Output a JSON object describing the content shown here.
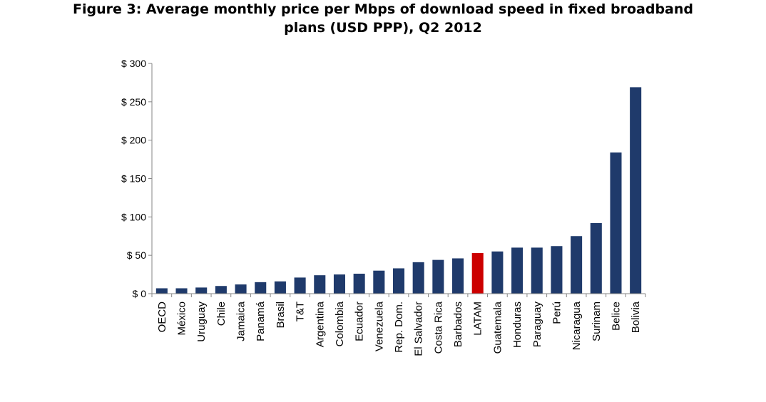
{
  "chart_data": {
    "type": "bar",
    "title_line1": "Figure 3: Average monthly price per Mbps of download speed in fixed broadband",
    "title_line2": "plans (USD PPP), Q2 2012",
    "xlabel": "",
    "ylabel": "",
    "ylim": [
      0,
      300
    ],
    "yticks": [
      0,
      50,
      100,
      150,
      200,
      250,
      300
    ],
    "ytick_labels": [
      "$ 0",
      "$ 50",
      "$ 100",
      "$ 150",
      "$ 200",
      "$ 250",
      "$ 300"
    ],
    "categories": [
      "OECD",
      "México",
      "Uruguay",
      "Chile",
      "Jamaica",
      "Panamá",
      "Brasil",
      "T&T",
      "Argentina",
      "Colombia",
      "Ecuador",
      "Venezuela",
      "Rep. Dom.",
      "El Salvador",
      "Costa Rica",
      "Barbados",
      "LATAM",
      "Guatemala",
      "Honduras",
      "Paraguay",
      "Perú",
      "Nicaragua",
      "Surinam",
      "Belice",
      "Bolivia"
    ],
    "values": [
      7,
      7,
      8,
      10,
      12,
      15,
      16,
      21,
      24,
      25,
      26,
      30,
      33,
      41,
      44,
      46,
      53,
      55,
      60,
      60,
      62,
      75,
      92,
      184,
      269
    ],
    "highlight_category": "LATAM",
    "colors": {
      "bar": "#1f3a6b",
      "highlight": "#cc0000",
      "axis": "#868686"
    },
    "grid": false
  }
}
